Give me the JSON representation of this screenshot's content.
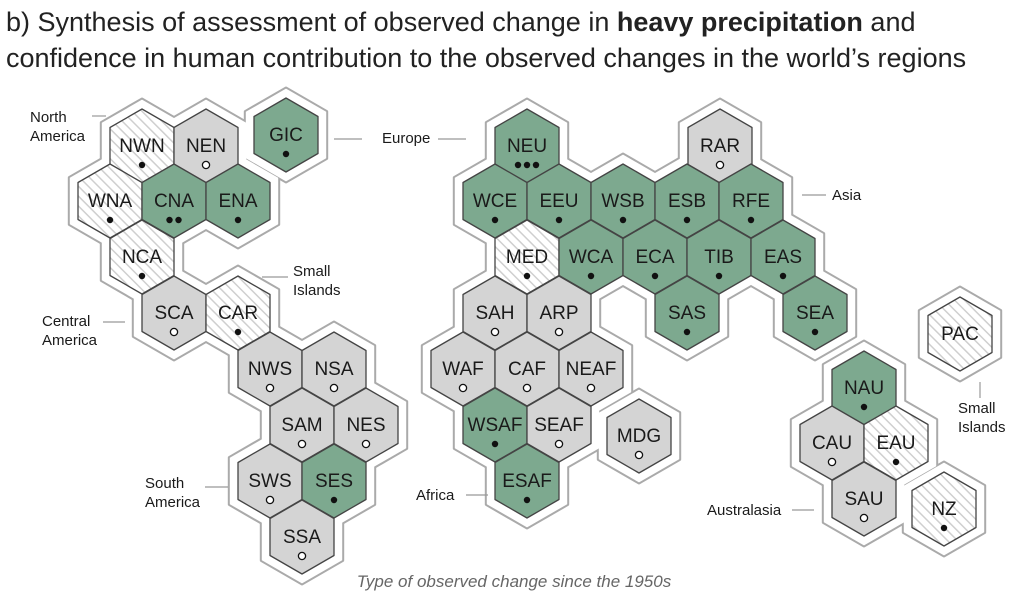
{
  "title": {
    "prefix": "b) Synthesis of assessment of observed change in ",
    "emphasis": "heavy precipitation",
    "line1_suffix": " and",
    "line2": "confidence in human contribution to the observed changes in the world’s regions"
  },
  "footer_text": "Type of observed change since the 1950s",
  "colors": {
    "increase": "#7da98f",
    "decrease": "#e3e3e3",
    "low_agreement": "#d4d4d4",
    "limited_data": "#ffffff",
    "hatch": "#cfcfcf",
    "outline": "#444444",
    "halo": "#aaaaaa"
  },
  "region_labels": [
    {
      "id": "north-america",
      "lines": [
        "North",
        "America"
      ]
    },
    {
      "id": "europe",
      "lines": [
        "Europe"
      ]
    },
    {
      "id": "asia",
      "lines": [
        "Asia"
      ]
    },
    {
      "id": "small-islands-1",
      "lines": [
        "Small",
        "Islands"
      ]
    },
    {
      "id": "central-america",
      "lines": [
        "Central",
        "America"
      ]
    },
    {
      "id": "south-america",
      "lines": [
        "South",
        "America"
      ]
    },
    {
      "id": "africa",
      "lines": [
        "Africa"
      ]
    },
    {
      "id": "australasia",
      "lines": [
        "Australasia"
      ]
    },
    {
      "id": "small-islands-2",
      "lines": [
        "Small",
        "Islands"
      ]
    }
  ],
  "regions": [
    {
      "code": "NWN",
      "type": "limited_data",
      "confidence": "low",
      "dots": 1
    },
    {
      "code": "NEN",
      "type": "low_agreement",
      "confidence": "limited",
      "dots": 1
    },
    {
      "code": "GIC",
      "type": "increase",
      "confidence": "low",
      "dots": 1
    },
    {
      "code": "WNA",
      "type": "limited_data",
      "confidence": "low",
      "dots": 1
    },
    {
      "code": "CNA",
      "type": "increase",
      "confidence": "medium",
      "dots": 2
    },
    {
      "code": "ENA",
      "type": "increase",
      "confidence": "low",
      "dots": 1
    },
    {
      "code": "NCA",
      "type": "limited_data",
      "confidence": "low",
      "dots": 1
    },
    {
      "code": "SCA",
      "type": "low_agreement",
      "confidence": "limited",
      "dots": 1
    },
    {
      "code": "CAR",
      "type": "limited_data",
      "confidence": "low",
      "dots": 1
    },
    {
      "code": "NWS",
      "type": "low_agreement",
      "confidence": "limited",
      "dots": 1
    },
    {
      "code": "NSA",
      "type": "low_agreement",
      "confidence": "limited",
      "dots": 1
    },
    {
      "code": "SAM",
      "type": "low_agreement",
      "confidence": "limited",
      "dots": 1
    },
    {
      "code": "NES",
      "type": "low_agreement",
      "confidence": "limited",
      "dots": 1
    },
    {
      "code": "SWS",
      "type": "low_agreement",
      "confidence": "limited",
      "dots": 1
    },
    {
      "code": "SES",
      "type": "increase",
      "confidence": "low",
      "dots": 1
    },
    {
      "code": "SSA",
      "type": "low_agreement",
      "confidence": "limited",
      "dots": 1
    },
    {
      "code": "NEU",
      "type": "increase",
      "confidence": "high",
      "dots": 3
    },
    {
      "code": "RAR",
      "type": "low_agreement",
      "confidence": "limited",
      "dots": 1
    },
    {
      "code": "WCE",
      "type": "increase",
      "confidence": "low",
      "dots": 1
    },
    {
      "code": "EEU",
      "type": "increase",
      "confidence": "low",
      "dots": 1
    },
    {
      "code": "WSB",
      "type": "increase",
      "confidence": "low",
      "dots": 1
    },
    {
      "code": "ESB",
      "type": "increase",
      "confidence": "low",
      "dots": 1
    },
    {
      "code": "RFE",
      "type": "increase",
      "confidence": "low",
      "dots": 1
    },
    {
      "code": "MED",
      "type": "limited_data",
      "confidence": "low",
      "dots": 1
    },
    {
      "code": "WCA",
      "type": "increase",
      "confidence": "low",
      "dots": 1
    },
    {
      "code": "ECA",
      "type": "increase",
      "confidence": "low",
      "dots": 1
    },
    {
      "code": "TIB",
      "type": "increase",
      "confidence": "low",
      "dots": 1
    },
    {
      "code": "EAS",
      "type": "increase",
      "confidence": "low",
      "dots": 1
    },
    {
      "code": "SAH",
      "type": "low_agreement",
      "confidence": "limited",
      "dots": 1
    },
    {
      "code": "ARP",
      "type": "low_agreement",
      "confidence": "limited",
      "dots": 1
    },
    {
      "code": "SAS",
      "type": "increase",
      "confidence": "low",
      "dots": 1
    },
    {
      "code": "SEA",
      "type": "increase",
      "confidence": "low",
      "dots": 1
    },
    {
      "code": "WAF",
      "type": "low_agreement",
      "confidence": "limited",
      "dots": 1
    },
    {
      "code": "CAF",
      "type": "low_agreement",
      "confidence": "limited",
      "dots": 1
    },
    {
      "code": "NEAF",
      "type": "low_agreement",
      "confidence": "limited",
      "dots": 1
    },
    {
      "code": "WSAF",
      "type": "increase",
      "confidence": "low",
      "dots": 1
    },
    {
      "code": "SEAF",
      "type": "low_agreement",
      "confidence": "limited",
      "dots": 1
    },
    {
      "code": "MDG",
      "type": "low_agreement",
      "confidence": "limited",
      "dots": 1
    },
    {
      "code": "ESAF",
      "type": "increase",
      "confidence": "low",
      "dots": 1
    },
    {
      "code": "PAC",
      "type": "limited_data",
      "confidence": "none",
      "dots": 0
    },
    {
      "code": "NAU",
      "type": "increase",
      "confidence": "low",
      "dots": 1
    },
    {
      "code": "CAU",
      "type": "low_agreement",
      "confidence": "limited",
      "dots": 1
    },
    {
      "code": "EAU",
      "type": "limited_data",
      "confidence": "low",
      "dots": 1
    },
    {
      "code": "SAU",
      "type": "low_agreement",
      "confidence": "limited",
      "dots": 1
    },
    {
      "code": "NZ",
      "type": "limited_data",
      "confidence": "low",
      "dots": 1
    }
  ]
}
